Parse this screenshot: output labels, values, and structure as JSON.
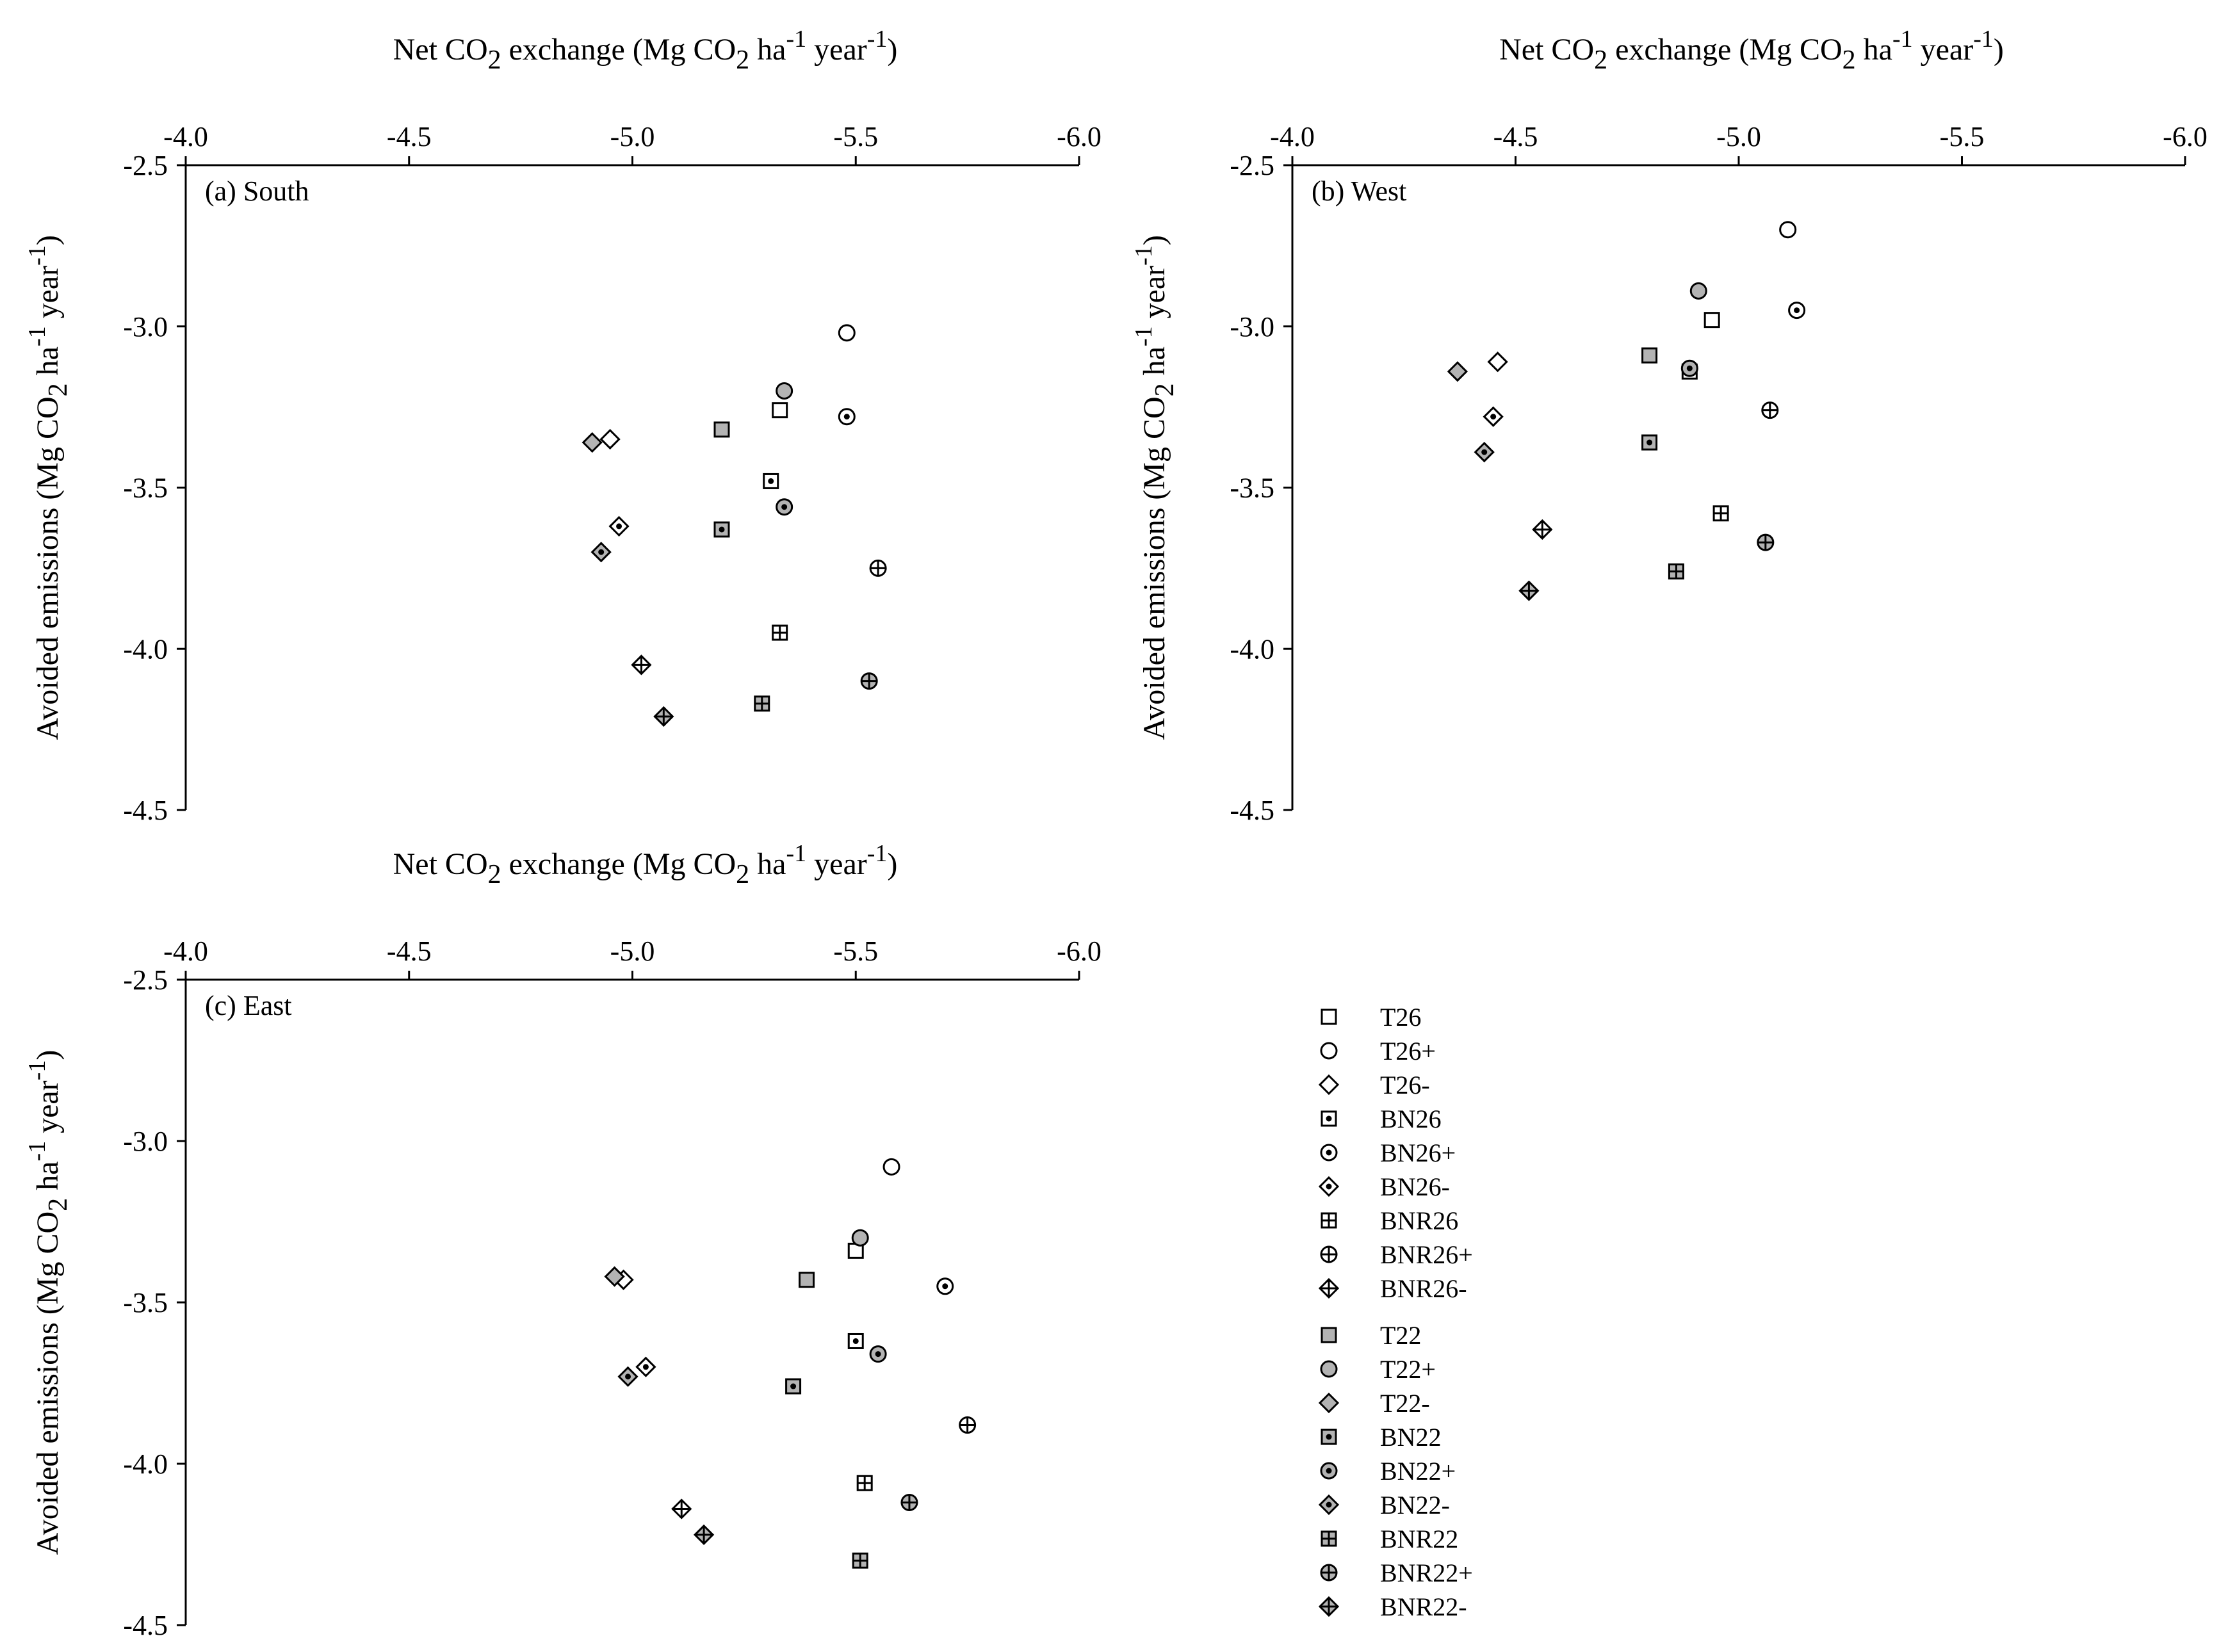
{
  "figure": {
    "x_axis_title": {
      "prefix": "Net CO",
      "sub": "2",
      "mid": " exchange (Mg CO",
      "sub2": "2",
      "mid2": " ha",
      "sup": "-1",
      "mid3": " year",
      "sup2": "-1",
      "suffix": ")"
    },
    "y_axis_title": {
      "prefix": "Avoided emissions (Mg CO",
      "sub": "2",
      "mid": " ha",
      "sup": "-1",
      "mid2": " year",
      "sup2": "-1",
      "suffix": ")"
    }
  },
  "chart_data": [
    {
      "type": "scatter",
      "panel": "(a) South",
      "xlabel": "Net CO2 exchange (Mg CO2 ha-1 year-1)",
      "ylabel": "Avoided emissions (Mg CO2 ha-1 year-1)",
      "xlim": [
        -4.0,
        -6.0
      ],
      "ylim": [
        -2.5,
        -4.5
      ],
      "xticks": [
        "-4.0",
        "-4.5",
        "-5.0",
        "-5.5",
        "-6.0"
      ],
      "yticks": [
        "-2.5",
        "-3.0",
        "-3.5",
        "-4.0",
        "-4.5"
      ],
      "points": [
        {
          "series": "T26",
          "x": -5.33,
          "y": -3.26
        },
        {
          "series": "T26+",
          "x": -5.48,
          "y": -3.02
        },
        {
          "series": "T26-",
          "x": -4.95,
          "y": -3.35
        },
        {
          "series": "BN26",
          "x": -5.31,
          "y": -3.48
        },
        {
          "series": "BN26+",
          "x": -5.48,
          "y": -3.28
        },
        {
          "series": "BN26-",
          "x": -4.97,
          "y": -3.62
        },
        {
          "series": "BNR26",
          "x": -5.33,
          "y": -3.95
        },
        {
          "series": "BNR26+",
          "x": -5.55,
          "y": -3.75
        },
        {
          "series": "BNR26-",
          "x": -5.02,
          "y": -4.05
        },
        {
          "series": "T22",
          "x": -5.2,
          "y": -3.32
        },
        {
          "series": "T22+",
          "x": -5.34,
          "y": -3.2
        },
        {
          "series": "T22-",
          "x": -4.91,
          "y": -3.36
        },
        {
          "series": "BN22",
          "x": -5.2,
          "y": -3.63
        },
        {
          "series": "BN22+",
          "x": -5.34,
          "y": -3.56
        },
        {
          "series": "BN22-",
          "x": -4.93,
          "y": -3.7
        },
        {
          "series": "BNR22",
          "x": -5.29,
          "y": -4.17
        },
        {
          "series": "BNR22+",
          "x": -5.53,
          "y": -4.1
        },
        {
          "series": "BNR22-",
          "x": -5.07,
          "y": -4.21
        }
      ]
    },
    {
      "type": "scatter",
      "panel": "(b) West",
      "xlabel": "Net CO2 exchange (Mg CO2 ha-1 year-1)",
      "ylabel": "Avoided emissions (Mg CO2 ha-1 year-1)",
      "xlim": [
        -4.0,
        -6.0
      ],
      "ylim": [
        -2.5,
        -4.5
      ],
      "xticks": [
        "-4.0",
        "-4.5",
        "-5.0",
        "-5.5",
        "-6.0"
      ],
      "yticks": [
        "-2.5",
        "-3.0",
        "-3.5",
        "-4.0",
        "-4.5"
      ],
      "points": [
        {
          "series": "T26",
          "x": -4.94,
          "y": -2.98
        },
        {
          "series": "T26+",
          "x": -5.11,
          "y": -2.7
        },
        {
          "series": "T26-",
          "x": -4.46,
          "y": -3.11
        },
        {
          "series": "BN26",
          "x": -4.89,
          "y": -3.14
        },
        {
          "series": "BN26+",
          "x": -5.13,
          "y": -2.95
        },
        {
          "series": "BN26-",
          "x": -4.45,
          "y": -3.28
        },
        {
          "series": "BNR26",
          "x": -4.96,
          "y": -3.58
        },
        {
          "series": "BNR26+",
          "x": -5.07,
          "y": -3.26
        },
        {
          "series": "BNR26-",
          "x": -4.56,
          "y": -3.63
        },
        {
          "series": "T22",
          "x": -4.8,
          "y": -3.09
        },
        {
          "series": "T22+",
          "x": -4.91,
          "y": -2.89
        },
        {
          "series": "T22-",
          "x": -4.37,
          "y": -3.14
        },
        {
          "series": "BN22",
          "x": -4.8,
          "y": -3.36
        },
        {
          "series": "BN22+",
          "x": -4.89,
          "y": -3.13
        },
        {
          "series": "BN22-",
          "x": -4.43,
          "y": -3.39
        },
        {
          "series": "BNR22",
          "x": -4.86,
          "y": -3.76
        },
        {
          "series": "BNR22+",
          "x": -5.06,
          "y": -3.67
        },
        {
          "series": "BNR22-",
          "x": -4.53,
          "y": -3.82
        }
      ]
    },
    {
      "type": "scatter",
      "panel": "(c) East",
      "xlabel": "Net CO2 exchange (Mg CO2 ha-1 year-1)",
      "ylabel": "Avoided emissions (Mg CO2 ha-1 year-1)",
      "xlim": [
        -4.0,
        -6.0
      ],
      "ylim": [
        -2.5,
        -4.5
      ],
      "xticks": [
        "-4.0",
        "-4.5",
        "-5.0",
        "-5.5",
        "-6.0"
      ],
      "yticks": [
        "-2.5",
        "-3.0",
        "-3.5",
        "-4.0",
        "-4.5"
      ],
      "points": [
        {
          "series": "T26",
          "x": -5.5,
          "y": -3.34
        },
        {
          "series": "T26+",
          "x": -5.58,
          "y": -3.08
        },
        {
          "series": "T26-",
          "x": -4.98,
          "y": -3.43
        },
        {
          "series": "BN26",
          "x": -5.5,
          "y": -3.62
        },
        {
          "series": "BN26+",
          "x": -5.7,
          "y": -3.45
        },
        {
          "series": "BN26-",
          "x": -5.03,
          "y": -3.7
        },
        {
          "series": "BNR26",
          "x": -5.52,
          "y": -4.06
        },
        {
          "series": "BNR26+",
          "x": -5.75,
          "y": -3.88
        },
        {
          "series": "BNR26-",
          "x": -5.11,
          "y": -4.14
        },
        {
          "series": "T22",
          "x": -5.39,
          "y": -3.43
        },
        {
          "series": "T22+",
          "x": -5.51,
          "y": -3.3
        },
        {
          "series": "T22-",
          "x": -4.96,
          "y": -3.42
        },
        {
          "series": "BN22",
          "x": -5.36,
          "y": -3.76
        },
        {
          "series": "BN22+",
          "x": -5.55,
          "y": -3.66
        },
        {
          "series": "BN22-",
          "x": -4.99,
          "y": -3.73
        },
        {
          "series": "BNR22",
          "x": -5.51,
          "y": -4.3
        },
        {
          "series": "BNR22+",
          "x": -5.62,
          "y": -4.12
        },
        {
          "series": "BNR22-",
          "x": -5.16,
          "y": -4.22
        }
      ]
    }
  ],
  "legend": {
    "items": [
      {
        "label": "T26",
        "marker": "square",
        "fill": "#ffffff",
        "inner": "none"
      },
      {
        "label": "T26+",
        "marker": "circle",
        "fill": "#ffffff",
        "inner": "none"
      },
      {
        "label": "T26-",
        "marker": "diamond",
        "fill": "#ffffff",
        "inner": "none"
      },
      {
        "label": "BN26",
        "marker": "square",
        "fill": "#ffffff",
        "inner": "dot"
      },
      {
        "label": "BN26+",
        "marker": "circle",
        "fill": "#ffffff",
        "inner": "dot"
      },
      {
        "label": "BN26-",
        "marker": "diamond",
        "fill": "#ffffff",
        "inner": "dot"
      },
      {
        "label": "BNR26",
        "marker": "square",
        "fill": "#ffffff",
        "inner": "cross"
      },
      {
        "label": "BNR26+",
        "marker": "circle",
        "fill": "#ffffff",
        "inner": "cross"
      },
      {
        "label": "BNR26-",
        "marker": "diamond",
        "fill": "#ffffff",
        "inner": "cross"
      },
      {
        "label": "T22",
        "marker": "square",
        "fill": "#b3b3b3",
        "inner": "none"
      },
      {
        "label": "T22+",
        "marker": "circle",
        "fill": "#b3b3b3",
        "inner": "none"
      },
      {
        "label": "T22-",
        "marker": "diamond",
        "fill": "#b3b3b3",
        "inner": "none"
      },
      {
        "label": "BN22",
        "marker": "square",
        "fill": "#b3b3b3",
        "inner": "dot"
      },
      {
        "label": "BN22+",
        "marker": "circle",
        "fill": "#b3b3b3",
        "inner": "dot"
      },
      {
        "label": "BN22-",
        "marker": "diamond",
        "fill": "#b3b3b3",
        "inner": "dot"
      },
      {
        "label": "BNR22",
        "marker": "square",
        "fill": "#b3b3b3",
        "inner": "cross"
      },
      {
        "label": "BNR22+",
        "marker": "circle",
        "fill": "#b3b3b3",
        "inner": "cross"
      },
      {
        "label": "BNR22-",
        "marker": "diamond",
        "fill": "#b3b3b3",
        "inner": "cross"
      }
    ]
  }
}
